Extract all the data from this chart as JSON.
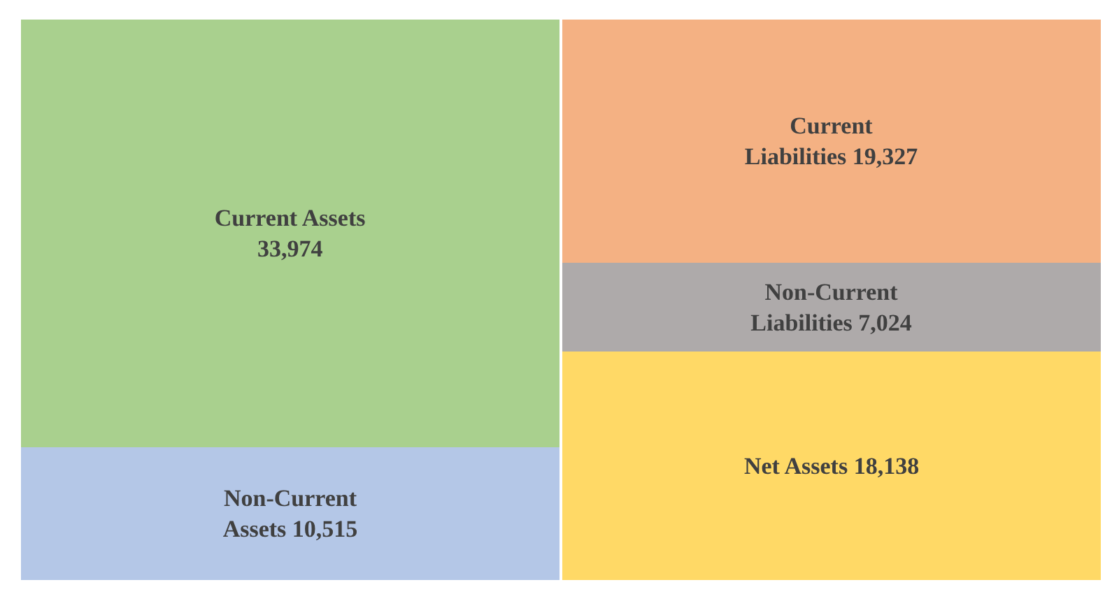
{
  "chart_data": {
    "type": "bar",
    "stacked": true,
    "categories": [
      null,
      null
    ],
    "tick_labels": false,
    "legend": false,
    "series": [
      {
        "color": "#b4c7e7",
        "values": [
          10515,
          null
        ],
        "value_labels": [
          "Non-Current\nAssets 10,515",
          null
        ]
      },
      {
        "color": "#a9d08e",
        "values": [
          33974,
          null
        ],
        "value_labels": [
          "Current Assets\n33,974",
          null
        ]
      },
      {
        "color": "#ffd966",
        "values": [
          null,
          18138
        ],
        "value_labels": [
          null,
          "Net Assets 18,138"
        ]
      },
      {
        "color": "#aeaaaa",
        "values": [
          null,
          7024
        ],
        "value_labels": [
          null,
          "Non-Current\nLiabilities 7,024"
        ]
      },
      {
        "color": "#f4b183",
        "values": [
          null,
          19327
        ],
        "value_labels": [
          null,
          "Current\nLiabilities 19,327"
        ]
      }
    ]
  }
}
